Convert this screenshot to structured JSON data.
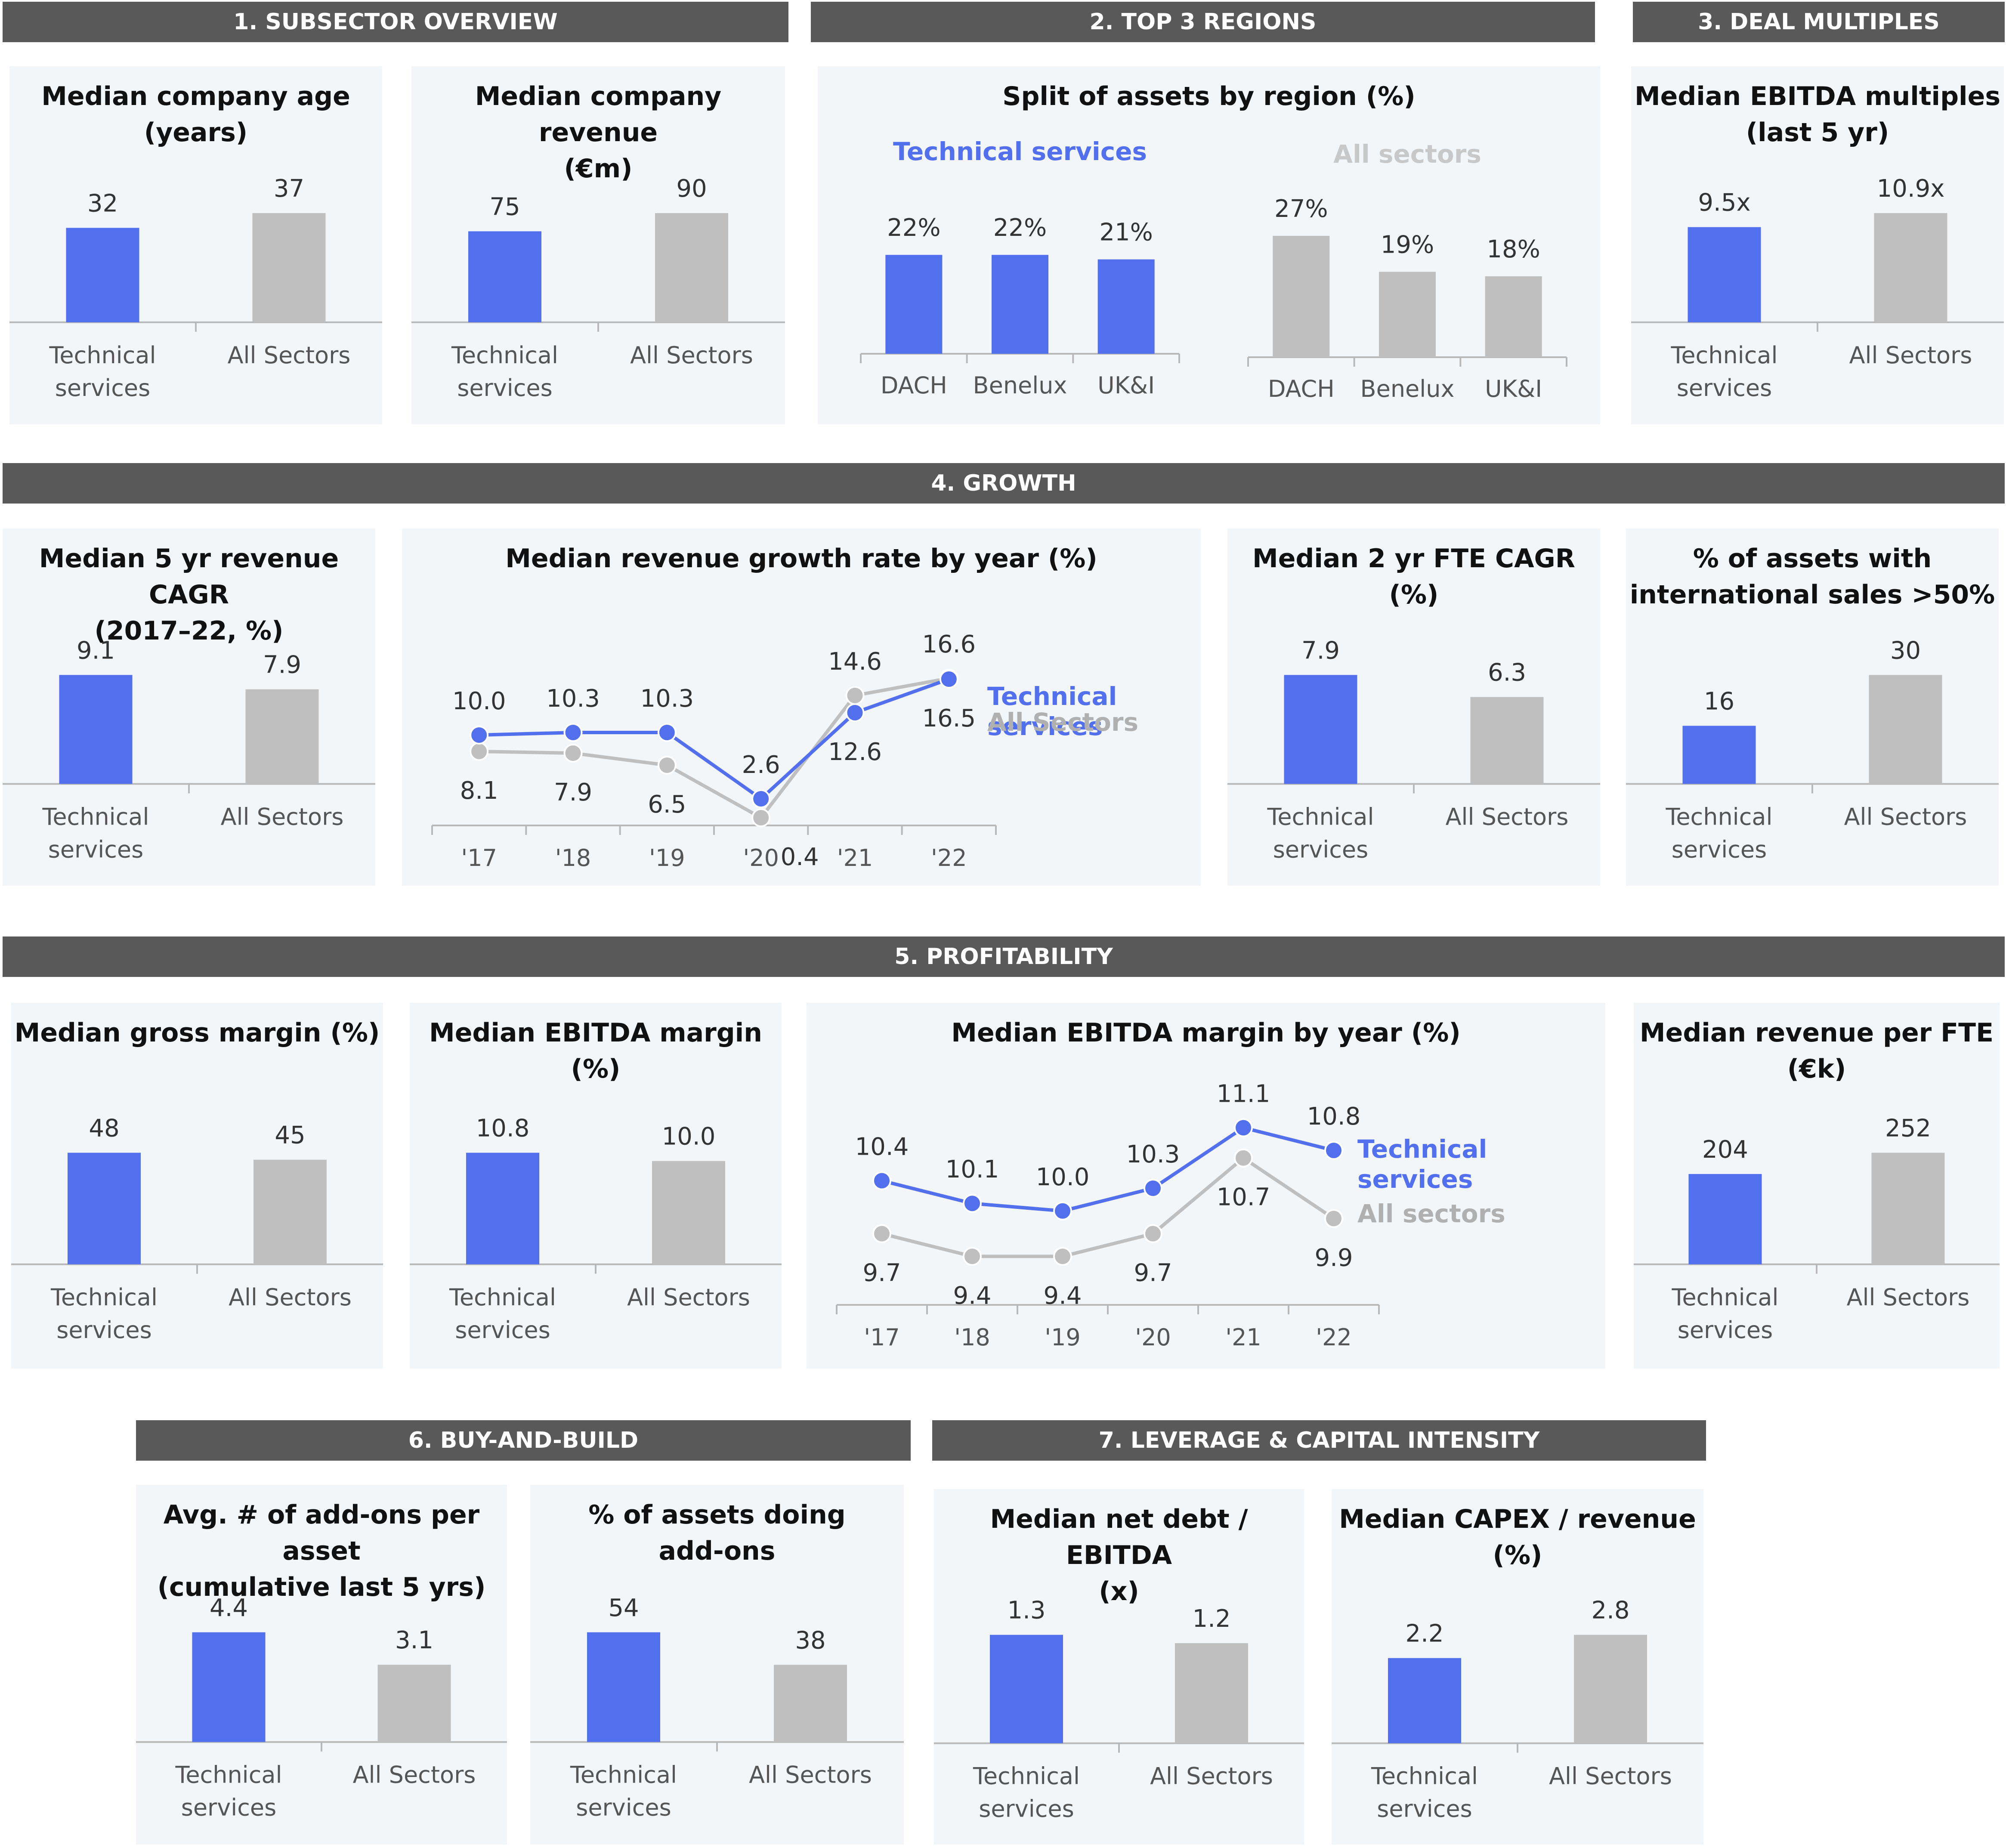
{
  "sections": {
    "s1": "1. SUBSECTOR OVERVIEW",
    "s2": "2. TOP 3 REGIONS",
    "s3": "3. DEAL MULTIPLES",
    "s4": "4. GROWTH",
    "s5": "5.  PROFITABILITY",
    "s6": "6. BUY-AND-BUILD",
    "s7": "7. LEVERAGE & CAPITAL INTENSITY"
  },
  "colors": {
    "technical": "#5270ee",
    "all": "#bfbfbf",
    "header": "#595959",
    "panel": "#f3f6f9"
  },
  "chart_data": [
    {
      "id": "age",
      "type": "bar",
      "title": "Median company age\n(years)",
      "categories": [
        "Technical\nservices",
        "All Sectors"
      ],
      "values": [
        32,
        37
      ],
      "labels": [
        "32",
        "37"
      ],
      "ylim": [
        0,
        50
      ]
    },
    {
      "id": "revenue",
      "type": "bar",
      "title": "Median company revenue\n(€m)",
      "categories": [
        "Technical\nservices",
        "All Sectors"
      ],
      "values": [
        75,
        90
      ],
      "labels": [
        "75",
        "90"
      ],
      "ylim": [
        0,
        120
      ]
    },
    {
      "id": "regions",
      "type": "bar",
      "title": "Split of assets by region (%)",
      "groups": [
        {
          "name": "Technical services",
          "categories": [
            "DACH",
            "Benelux",
            "UK&I"
          ],
          "values": [
            22,
            22,
            21
          ],
          "labels": [
            "22%",
            "22%",
            "21%"
          ]
        },
        {
          "name": "All sectors",
          "categories": [
            "DACH",
            "Benelux",
            "UK&I"
          ],
          "values": [
            27,
            19,
            18
          ],
          "labels": [
            "27%",
            "19%",
            "18%"
          ]
        }
      ],
      "ylim": [
        0,
        35
      ]
    },
    {
      "id": "ebitda_mult",
      "type": "bar",
      "title": "Median EBITDA multiples\n(last 5 yr)",
      "categories": [
        "Technical\nservices",
        "All Sectors"
      ],
      "values": [
        9.5,
        10.9
      ],
      "labels": [
        "9.5x",
        "10.9x"
      ],
      "ylim": [
        0,
        14
      ]
    },
    {
      "id": "cagr5",
      "type": "bar",
      "title": "Median 5 yr revenue CAGR\n(2017–22, %)",
      "categories": [
        "Technical\nservices",
        "All Sectors"
      ],
      "values": [
        9.1,
        7.9
      ],
      "labels": [
        "9.1",
        "7.9"
      ],
      "ylim": [
        0,
        12
      ]
    },
    {
      "id": "growth_year",
      "type": "line",
      "title": "Median revenue growth rate by year (%)",
      "x": [
        "'17",
        "'18",
        "'19",
        "'20",
        "'21",
        "'22"
      ],
      "series": [
        {
          "name": "Technical\nservices",
          "values": [
            10.0,
            10.3,
            10.3,
            2.6,
            12.6,
            16.5
          ],
          "labels": [
            "10.0",
            "10.3",
            "10.3",
            "2.6",
            "12.6",
            "16.5"
          ]
        },
        {
          "name": "All Sectors",
          "values": [
            8.1,
            7.9,
            6.5,
            0.4,
            14.6,
            16.6
          ],
          "labels": [
            "8.1",
            "7.9",
            "6.5",
            "0.4",
            "14.6",
            "16.6"
          ]
        }
      ],
      "ylim": [
        0,
        20
      ]
    },
    {
      "id": "fte_cagr",
      "type": "bar",
      "title": "Median 2 yr FTE CAGR (%)",
      "categories": [
        "Technical\nservices",
        "All Sectors"
      ],
      "values": [
        7.9,
        6.3
      ],
      "labels": [
        "7.9",
        "6.3"
      ],
      "ylim": [
        0,
        10
      ]
    },
    {
      "id": "intl",
      "type": "bar",
      "title": "% of assets with\ninternational sales >50%",
      "categories": [
        "Technical\nservices",
        "All Sectors"
      ],
      "values": [
        16,
        30
      ],
      "labels": [
        "16",
        "30"
      ],
      "ylim": [
        0,
        40
      ]
    },
    {
      "id": "gross_margin",
      "type": "bar",
      "title": "Median gross margin (%)",
      "categories": [
        "Technical\nservices",
        "All Sectors"
      ],
      "values": [
        48,
        45
      ],
      "labels": [
        "48",
        "45"
      ],
      "ylim": [
        0,
        60
      ]
    },
    {
      "id": "ebitda_margin",
      "type": "bar",
      "title": "Median EBITDA margin (%)",
      "categories": [
        "Technical\nservices",
        "All Sectors"
      ],
      "values": [
        10.8,
        10.0
      ],
      "labels": [
        "10.8",
        "10.0"
      ],
      "ylim": [
        0,
        13.5
      ]
    },
    {
      "id": "ebitda_year",
      "type": "line",
      "title": "Median EBITDA margin by year (%)",
      "x": [
        "'17",
        "'18",
        "'19",
        "'20",
        "'21",
        "'22"
      ],
      "series": [
        {
          "name": "Technical\nservices",
          "values": [
            10.4,
            10.1,
            10.0,
            10.3,
            11.1,
            10.8
          ],
          "labels": [
            "10.4",
            "10.1",
            "10.0",
            "10.3",
            "11.1",
            "10.8"
          ]
        },
        {
          "name": "All sectors",
          "values": [
            9.7,
            9.4,
            9.4,
            9.7,
            10.7,
            9.9
          ],
          "labels": [
            "9.7",
            "9.4",
            "9.4",
            "9.7",
            "10.7",
            "9.9"
          ]
        }
      ],
      "ylim": [
        8.6,
        11.5
      ]
    },
    {
      "id": "rev_fte",
      "type": "bar",
      "title": "Median revenue per FTE\n(€k)",
      "categories": [
        "Technical\nservices",
        "All Sectors"
      ],
      "values": [
        204,
        252
      ],
      "labels": [
        "204",
        "252"
      ],
      "ylim": [
        0,
        300
      ]
    },
    {
      "id": "addons",
      "type": "bar",
      "title": "Avg. # of add-ons per asset\n(cumulative last 5 yrs)",
      "categories": [
        "Technical\nservices",
        "All Sectors"
      ],
      "values": [
        4.4,
        3.1
      ],
      "labels": [
        "4.4",
        "3.1"
      ],
      "ylim": [
        0,
        5.5
      ]
    },
    {
      "id": "addons_pct",
      "type": "bar",
      "title": "% of assets doing\nadd-ons",
      "categories": [
        "Technical\nservices",
        "All Sectors"
      ],
      "values": [
        54,
        38
      ],
      "labels": [
        "54",
        "38"
      ],
      "ylim": [
        0,
        70
      ]
    },
    {
      "id": "net_debt",
      "type": "bar",
      "title": "Median net debt / EBITDA\n(x)",
      "categories": [
        "Technical\nservices",
        "All Sectors"
      ],
      "values": [
        1.3,
        1.2
      ],
      "labels": [
        "1.3",
        "1.2"
      ],
      "ylim": [
        0,
        1.6
      ]
    },
    {
      "id": "capex",
      "type": "bar",
      "title": "Median CAPEX / revenue\n(%)",
      "categories": [
        "Technical\nservices",
        "All Sectors"
      ],
      "values": [
        2.2,
        2.8
      ],
      "labels": [
        "2.2",
        "2.8"
      ],
      "ylim": [
        0,
        3.4
      ]
    }
  ]
}
